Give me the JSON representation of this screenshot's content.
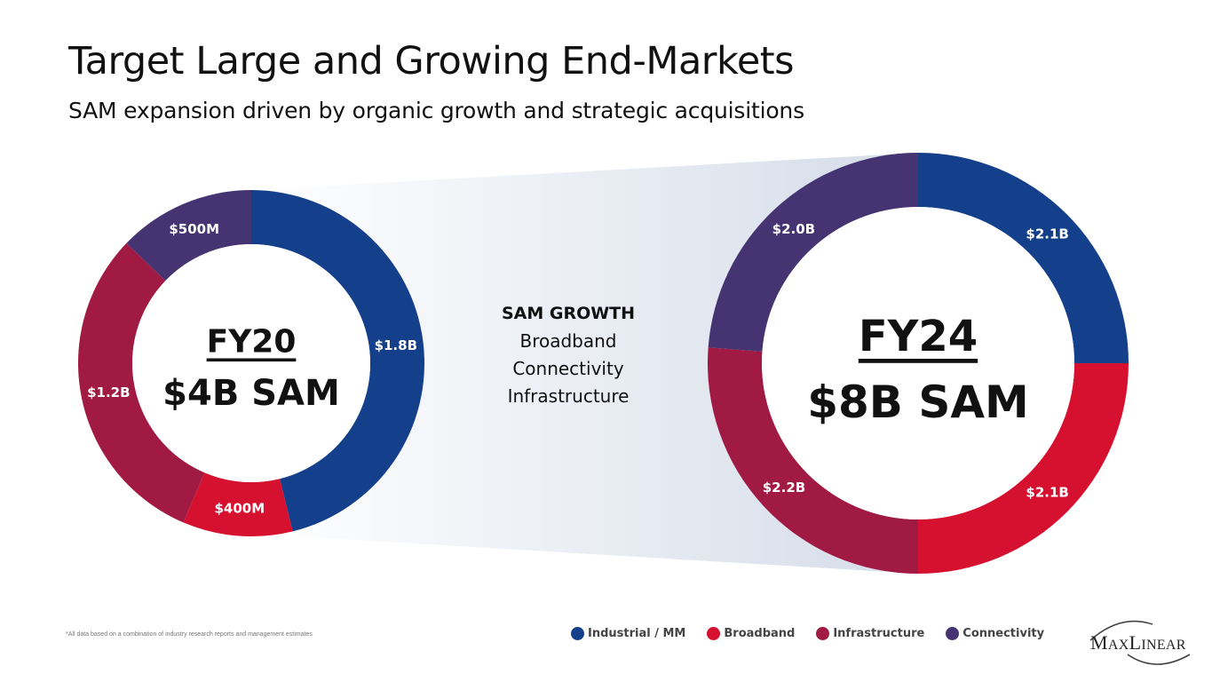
{
  "slide": {
    "title": "Target Large and Growing End-Markets",
    "subtitle": "SAM expansion driven by organic growth and strategic acquisitions",
    "footnote": "*All data based on a combination of industry research reports and management estimates"
  },
  "growth": {
    "heading": "SAM GROWTH",
    "items": [
      "Broadband",
      "Connectivity",
      "Infrastructure"
    ]
  },
  "legend": [
    {
      "name": "Industrial / MM",
      "color": "#14408b"
    },
    {
      "name": "Broadband",
      "color": "#d61130"
    },
    {
      "name": "Infrastructure",
      "color": "#a11a44"
    },
    {
      "name": "Connectivity",
      "color": "#463472"
    }
  ],
  "logo": {
    "text_big_1": "M",
    "text_small_1": "AX",
    "text_big_2": "L",
    "text_small_2": "INEAR"
  },
  "chart_data": [
    {
      "type": "pie",
      "donut": true,
      "center_title": "FY20",
      "center_value": "$4B SAM",
      "categories": [
        "Industrial / MM",
        "Broadband",
        "Infrastructure",
        "Connectivity"
      ],
      "values": [
        1.8,
        0.4,
        1.2,
        0.5
      ],
      "units": "$B",
      "labels": [
        "$1.8B",
        "$400M",
        "$1.2B",
        "$500M"
      ]
    },
    {
      "type": "pie",
      "donut": true,
      "center_title": "FY24",
      "center_value": "$8B SAM",
      "categories": [
        "Industrial / MM",
        "Broadband",
        "Infrastructure",
        "Connectivity"
      ],
      "values": [
        2.1,
        2.1,
        2.2,
        2.0
      ],
      "units": "$B",
      "labels": [
        "$2.1B",
        "$2.1B",
        "$2.2B",
        "$2.0B"
      ]
    }
  ]
}
